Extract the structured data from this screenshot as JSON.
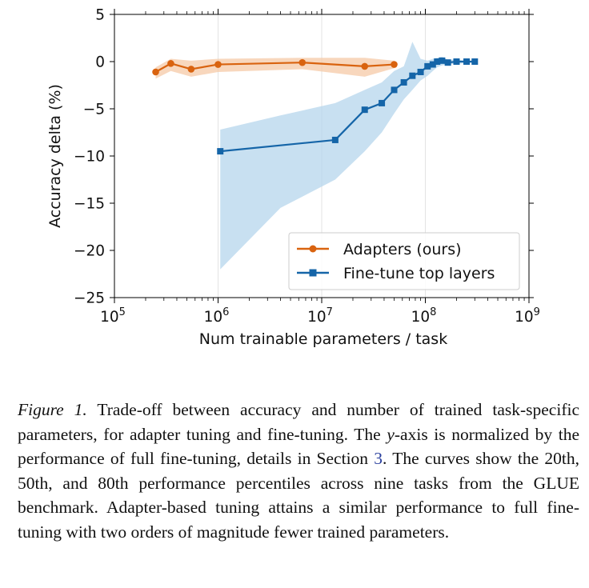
{
  "chart_data": {
    "type": "line",
    "x_scale": "log",
    "xlabel": "Num trainable parameters / task",
    "ylabel": "Accuracy delta (%)",
    "xlim": [
      100000,
      1000000000
    ],
    "ylim": [
      -25,
      5
    ],
    "x_ticks": [
      {
        "value": 100000,
        "base": "10",
        "exp": "5"
      },
      {
        "value": 1000000,
        "base": "10",
        "exp": "6"
      },
      {
        "value": 10000000,
        "base": "10",
        "exp": "7"
      },
      {
        "value": 100000000,
        "base": "10",
        "exp": "8"
      },
      {
        "value": 1000000000,
        "base": "10",
        "exp": "9"
      }
    ],
    "y_ticks": [
      {
        "value": 5,
        "label": "5"
      },
      {
        "value": 0,
        "label": "0"
      },
      {
        "value": -5,
        "label": "−5"
      },
      {
        "value": -10,
        "label": "−10"
      },
      {
        "value": -15,
        "label": "−15"
      },
      {
        "value": -20,
        "label": "−20"
      },
      {
        "value": -25,
        "label": "−25"
      }
    ],
    "grid_x": true,
    "grid_y": false,
    "legend_position": "lower-right",
    "series": [
      {
        "name": "Adapters (ours)",
        "color": "#d9630f",
        "band_color": "#f5c9a7",
        "marker": "circle",
        "x": [
          250000,
          350000,
          550000,
          1000000,
          6500000,
          26000000,
          50000000
        ],
        "y": [
          -1.1,
          -0.2,
          -0.8,
          -0.3,
          -0.1,
          -0.5,
          -0.3
        ],
        "band_x": [
          250000,
          350000,
          550000,
          1000000,
          6500000,
          26000000,
          50000000
        ],
        "band_low": [
          -1.8,
          -1.0,
          -1.6,
          -1.1,
          -0.8,
          -1.6,
          -0.7
        ],
        "band_high": [
          -0.6,
          0.3,
          0.1,
          0.3,
          0.4,
          0.4,
          0.1
        ]
      },
      {
        "name": "Fine-tune top layers",
        "color": "#1565a8",
        "band_color": "#b6d6ec",
        "marker": "square",
        "x": [
          1050000,
          13500000,
          26000000,
          38000000,
          50000000,
          62000000,
          75000000,
          90000000,
          105000000,
          118000000,
          130000000,
          145000000,
          165000000,
          200000000,
          250000000,
          300000000
        ],
        "y": [
          -9.5,
          -8.3,
          -5.1,
          -4.4,
          -3.0,
          -2.2,
          -1.5,
          -1.1,
          -0.5,
          -0.3,
          0.0,
          0.1,
          -0.1,
          0.0,
          0.0,
          0.0
        ],
        "band_x": [
          1050000,
          4000000,
          13500000,
          26000000,
          38000000,
          50000000,
          62000000,
          75000000,
          90000000,
          105000000,
          118000000,
          130000000,
          145000000,
          165000000,
          200000000,
          250000000,
          300000000
        ],
        "band_low": [
          -22.0,
          -15.5,
          -12.5,
          -9.5,
          -7.5,
          -5.5,
          -4.0,
          -3.0,
          -2.0,
          -1.5,
          -1.0,
          -0.6,
          -0.4,
          -0.3,
          -0.2,
          -0.2,
          -0.1
        ],
        "band_high": [
          -7.2,
          -5.7,
          -4.4,
          -3.0,
          -2.2,
          -1.0,
          -0.5,
          2.1,
          0.3,
          0.1,
          0.3,
          0.4,
          0.5,
          0.2,
          0.2,
          0.1,
          0.1
        ]
      }
    ]
  },
  "caption": {
    "label": "Figure 1.",
    "text_1": " Trade-off between accuracy and number of trained task-specific parameters, for adapter tuning and fine-tuning. The ",
    "y_var": "y",
    "text_2": "-axis is normalized by the performance of full fine-tuning, details in Section ",
    "section_ref": "3",
    "text_3": ". The curves show the 20th, 50th, and 80th performance percentiles across nine tasks from the GLUE benchmark. Adapter-based tuning attains a similar performance to full fine-tuning with two orders of magnitude fewer trained parameters."
  }
}
